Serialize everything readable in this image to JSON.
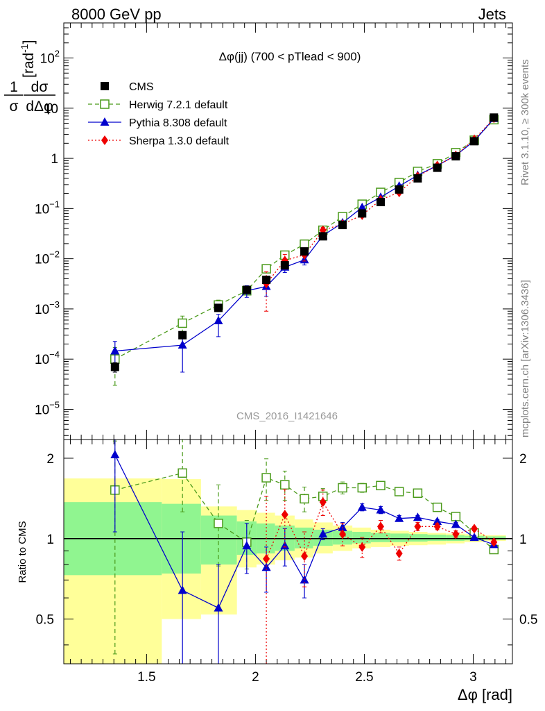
{
  "header": {
    "energy_label": "8000 GeV pp",
    "process_label": "Jets"
  },
  "side_labels": {
    "rivet": "Rivet 3.1.10, ≥ 300k events",
    "source": "mcplots.cern.ch [arXiv:1306.3436]"
  },
  "watermark": "CMS_2016_I1421646",
  "colors": {
    "cms": "#000000",
    "herwig": "#4a9a1a",
    "pythia": "#0000cc",
    "sherpa": "#ee0000",
    "band_inner": "#90f590",
    "band_outer": "#ffff99"
  },
  "chart_data": [
    {
      "type": "line",
      "panel": "main",
      "title": "Δφ(jj) (700 < pTlead <  900)",
      "xlabel": "Δφ [rad]",
      "ylabel": "1/σ dσ/dΔφ [rad⁻¹]",
      "ylabel_parts": {
        "num": "1",
        "den": "σ",
        "num2": "dσ",
        "den2": "dΔφ",
        "unit": "[rad",
        "unit_exp": "-1",
        "unit_close": "]"
      },
      "yscale": "log",
      "xlim": [
        1.12,
        3.18
      ],
      "ylim": [
        2.5e-06,
        500
      ],
      "y_ticks": [
        {
          "value": 1e-05,
          "base": "10",
          "exp": "−5"
        },
        {
          "value": 0.0001,
          "base": "10",
          "exp": "−4"
        },
        {
          "value": 0.001,
          "base": "10",
          "exp": "−3"
        },
        {
          "value": 0.01,
          "base": "10",
          "exp": "−2"
        },
        {
          "value": 0.1,
          "base": "10",
          "exp": "−1"
        },
        {
          "value": 1,
          "base": "1",
          "exp": ""
        },
        {
          "value": 10,
          "base": "10",
          "exp": ""
        },
        {
          "value": 100,
          "base": "10",
          "exp": "2"
        }
      ],
      "x": [
        1.355,
        1.665,
        1.83,
        1.96,
        2.05,
        2.135,
        2.225,
        2.31,
        2.4,
        2.49,
        2.575,
        2.66,
        2.745,
        2.835,
        2.92,
        3.005,
        3.095
      ],
      "series": [
        {
          "name": "CMS",
          "marker": "square",
          "values": [
            7e-05,
            0.0003,
            0.00105,
            0.0024,
            0.0038,
            0.0074,
            0.014,
            0.028,
            0.047,
            0.08,
            0.135,
            0.24,
            0.4,
            0.65,
            1.1,
            2.2,
            6.5
          ],
          "err_low": [
            1.5e-05,
            3e-05,
            0.0001,
            0.0002,
            0.0003,
            0.0005,
            0.001,
            0.002,
            0.003,
            0.005,
            0.008,
            0.013,
            0.02,
            0.03,
            0.05,
            0.1,
            0.3
          ],
          "err_high": [
            1.5e-05,
            3e-05,
            0.0001,
            0.0002,
            0.0003,
            0.0005,
            0.001,
            0.002,
            0.003,
            0.005,
            0.008,
            0.013,
            0.02,
            0.03,
            0.05,
            0.1,
            0.3
          ]
        },
        {
          "name": "Herwig 7.2.1 default",
          "marker": "open-square",
          "line": "dashed",
          "values": [
            0.0001,
            0.00052,
            0.0012,
            0.0023,
            0.0063,
            0.0118,
            0.0195,
            0.037,
            0.069,
            0.122,
            0.21,
            0.33,
            0.55,
            0.78,
            1.3,
            2.3,
            5.9
          ],
          "err_low": [
            7e-05,
            0.0002,
            0.0003,
            0.0004,
            0.0008,
            0.001,
            0.0012,
            0.002,
            0.003,
            0.004,
            0.006,
            0.008,
            0.01,
            0.02,
            0.03,
            0.05,
            0.1
          ],
          "err_high": [
            7e-05,
            0.0002,
            0.0003,
            0.0004,
            0.0008,
            0.001,
            0.0012,
            0.002,
            0.003,
            0.004,
            0.006,
            0.008,
            0.01,
            0.02,
            0.03,
            0.05,
            0.1
          ]
        },
        {
          "name": "Pythia 8.308 default",
          "marker": "triangle",
          "line": "solid",
          "values": [
            0.000145,
            0.00019,
            0.00058,
            0.0023,
            0.0028,
            0.0068,
            0.0095,
            0.029,
            0.052,
            0.105,
            0.168,
            0.28,
            0.46,
            0.72,
            1.15,
            2.22,
            6.2
          ],
          "err_low": [
            9e-05,
            0.000135,
            0.0003,
            0.0006,
            0.001,
            0.0015,
            0.002,
            0.003,
            0.004,
            0.006,
            0.008,
            0.012,
            0.015,
            0.02,
            0.03,
            0.05,
            0.1
          ],
          "err_high": [
            8e-05,
            9e-05,
            0.0002,
            0.0006,
            0.001,
            0.0015,
            0.002,
            0.003,
            0.004,
            0.006,
            0.008,
            0.012,
            0.015,
            0.02,
            0.03,
            0.05,
            0.1
          ]
        },
        {
          "name": "Sherpa 1.3.0 default",
          "marker": "diamond",
          "line": "dotted",
          "values": [
            null,
            null,
            null,
            null,
            0.0032,
            0.0092,
            0.012,
            0.037,
            0.049,
            0.074,
            0.15,
            0.21,
            0.44,
            0.72,
            1.14,
            2.4,
            6.3
          ],
          "err_low": [
            null,
            null,
            null,
            null,
            0.0023,
            0.003,
            0.003,
            0.005,
            0.005,
            0.006,
            0.01,
            0.015,
            0.02,
            0.03,
            0.04,
            0.06,
            0.1
          ],
          "err_high": [
            null,
            null,
            null,
            null,
            0.0023,
            0.003,
            0.003,
            0.005,
            0.005,
            0.006,
            0.01,
            0.015,
            0.02,
            0.03,
            0.04,
            0.06,
            0.1
          ]
        }
      ],
      "legend": "top-left"
    },
    {
      "type": "line",
      "panel": "ratio",
      "ylabel": "Ratio to CMS",
      "yscale": "log",
      "ylim": [
        0.34,
        2.35
      ],
      "y_ticks": [
        {
          "value": 0.5,
          "label": "0.5"
        },
        {
          "value": 1,
          "label": "1"
        },
        {
          "value": 2,
          "label": "2"
        }
      ],
      "x_ticks": [
        {
          "value": 1.5,
          "label": "1.5"
        },
        {
          "value": 2,
          "label": "2"
        },
        {
          "value": 2.5,
          "label": "2.5"
        },
        {
          "value": 3,
          "label": "3"
        }
      ],
      "reference": 1,
      "bands": {
        "edges": [
          1.12,
          1.57,
          1.75,
          1.915,
          2.005,
          2.09,
          2.18,
          2.265,
          2.355,
          2.445,
          2.53,
          2.62,
          2.705,
          2.79,
          2.875,
          2.96,
          3.05,
          3.15
        ],
        "inner_low": [
          0.73,
          0.74,
          0.8,
          0.87,
          0.88,
          0.9,
          0.92,
          0.94,
          0.95,
          0.96,
          0.97,
          0.97,
          0.975,
          0.98,
          0.98,
          0.985,
          0.99
        ],
        "inner_high": [
          1.37,
          1.35,
          1.22,
          1.16,
          1.14,
          1.12,
          1.1,
          1.08,
          1.07,
          1.06,
          1.05,
          1.045,
          1.04,
          1.035,
          1.03,
          1.025,
          1.02
        ],
        "outer_low": [
          0.34,
          0.5,
          0.52,
          0.78,
          0.8,
          0.83,
          0.85,
          0.88,
          0.9,
          0.92,
          0.93,
          0.94,
          0.945,
          0.95,
          0.96,
          0.97,
          0.98
        ],
        "outer_high": [
          1.68,
          1.67,
          1.32,
          1.28,
          1.25,
          1.22,
          1.18,
          1.15,
          1.12,
          1.1,
          1.08,
          1.07,
          1.06,
          1.05,
          1.045,
          1.04,
          1.03
        ]
      },
      "series": [
        {
          "name": "Herwig 7.2.1 default",
          "values": [
            1.52,
            1.76,
            1.14,
            0.97,
            1.69,
            1.59,
            1.41,
            1.44,
            1.55,
            1.55,
            1.58,
            1.5,
            1.48,
            1.31,
            1.21,
            1.05,
            0.91
          ],
          "err_low": [
            1.15,
            0.5,
            0.35,
            0.2,
            0.3,
            0.2,
            0.15,
            0.1,
            0.08,
            0.06,
            0.05,
            0.04,
            0.03,
            0.03,
            0.02,
            0.02,
            0.02
          ],
          "err_high": [
            0.8,
            0.7,
            0.45,
            0.2,
            0.3,
            0.2,
            0.15,
            0.1,
            0.08,
            0.06,
            0.05,
            0.04,
            0.03,
            0.03,
            0.02,
            0.02,
            0.02
          ]
        },
        {
          "name": "Pythia 8.308 default",
          "values": [
            2.06,
            0.64,
            0.55,
            0.94,
            0.78,
            0.94,
            0.7,
            1.04,
            1.1,
            1.31,
            1.28,
            1.19,
            1.2,
            1.16,
            1.13,
            1.01,
            0.95
          ],
          "err_low": [
            1.0,
            0.5,
            0.3,
            0.2,
            0.15,
            0.15,
            0.1,
            0.05,
            0.05,
            0.04,
            0.04,
            0.03,
            0.02,
            0.02,
            0.02,
            0.015,
            0.01
          ],
          "err_high": [
            0.6,
            0.42,
            0.25,
            0.2,
            0.15,
            0.15,
            0.1,
            0.05,
            0.05,
            0.04,
            0.04,
            0.03,
            0.02,
            0.02,
            0.02,
            0.015,
            0.01
          ]
        },
        {
          "name": "Sherpa 1.3.0 default",
          "values": [
            null,
            null,
            null,
            null,
            0.84,
            1.23,
            0.86,
            1.37,
            1.04,
            0.93,
            1.11,
            0.88,
            1.11,
            1.11,
            1.04,
            1.09,
            0.97
          ],
          "err_low": [
            null,
            null,
            null,
            null,
            0.5,
            0.3,
            0.2,
            0.15,
            0.1,
            0.08,
            0.06,
            0.05,
            0.04,
            0.03,
            0.03,
            0.02,
            0.02
          ],
          "err_high": [
            null,
            null,
            null,
            null,
            0.6,
            0.3,
            0.2,
            0.15,
            0.1,
            0.08,
            0.06,
            0.05,
            0.04,
            0.03,
            0.03,
            0.02,
            0.02
          ]
        }
      ]
    }
  ]
}
